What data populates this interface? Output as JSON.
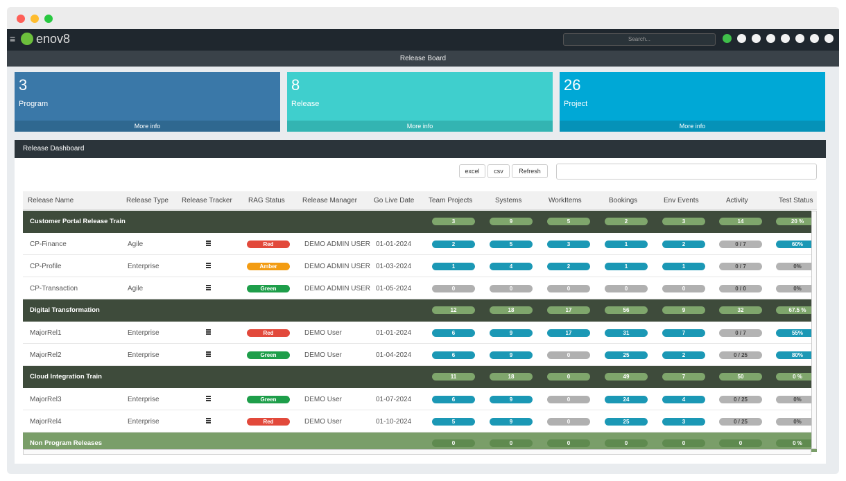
{
  "app": {
    "logo": "enov8",
    "search_placeholder": "Search...",
    "page_title": "Release Board"
  },
  "cards": [
    {
      "value": 3,
      "label": "Program",
      "more": "More info",
      "color": "#3a78a8",
      "foot": "#2f6890"
    },
    {
      "value": 8,
      "label": "Release",
      "more": "More info",
      "color": "#3fcfcd",
      "foot": "#33b4b2"
    },
    {
      "value": 26,
      "label": "Project",
      "more": "More info",
      "color": "#00a8d6",
      "foot": "#0592b8"
    }
  ],
  "panel": {
    "title": "Release Dashboard",
    "buttons": [
      "excel",
      "csv",
      "Refresh"
    ]
  },
  "table": {
    "columns": [
      "Release Name",
      "Release Type",
      "Release Tracker",
      "RAG Status",
      "Release Manager",
      "Go Live Date",
      "Team Projects",
      "Systems",
      "WorkItems",
      "Bookings",
      "Env Events",
      "Activity",
      "Test Status"
    ],
    "groups": [
      {
        "name": "Customer Portal Release Train",
        "color": "#3e4b3b",
        "totals": [
          3,
          9,
          5,
          2,
          3,
          14
        ],
        "test": "20 %",
        "rows": [
          {
            "name": "CP-Finance",
            "type": "Agile",
            "rag": {
              "label": "Red",
              "color": "#e2493b"
            },
            "manager": "DEMO ADMIN USER",
            "date": "01-01-2024",
            "counts": [
              2,
              5,
              3,
              1,
              2
            ],
            "activity": "0 / 7",
            "test": "60%"
          },
          {
            "name": "CP-Profile",
            "type": "Enterprise",
            "rag": {
              "label": "Amber",
              "color": "#f39c12"
            },
            "manager": "DEMO ADMIN USER",
            "date": "01-03-2024",
            "counts": [
              1,
              4,
              2,
              1,
              1
            ],
            "activity": "0 / 7",
            "test": "0%"
          },
          {
            "name": "CP-Transaction",
            "type": "Agile",
            "rag": {
              "label": "Green",
              "color": "#1e9e4a"
            },
            "manager": "DEMO ADMIN USER",
            "date": "01-05-2024",
            "counts": [
              0,
              0,
              0,
              0,
              0
            ],
            "activity": "0 / 0",
            "test": "0%"
          }
        ]
      },
      {
        "name": "Digital Transformation",
        "color": "#3e4b3b",
        "totals": [
          12,
          18,
          17,
          56,
          9,
          32
        ],
        "test": "67.5 %",
        "rows": [
          {
            "name": "MajorRel1",
            "type": "Enterprise",
            "rag": {
              "label": "Red",
              "color": "#e2493b"
            },
            "manager": "DEMO User",
            "date": "01-01-2024",
            "counts": [
              6,
              9,
              17,
              31,
              7
            ],
            "activity": "0 / 7",
            "test": "55%"
          },
          {
            "name": "MajorRel2",
            "type": "Enterprise",
            "rag": {
              "label": "Green",
              "color": "#1e9e4a"
            },
            "manager": "DEMO User",
            "date": "01-04-2024",
            "counts": [
              6,
              9,
              0,
              25,
              2
            ],
            "activity": "0 / 25",
            "test": "80%"
          }
        ]
      },
      {
        "name": "Cloud Integration Train",
        "color": "#3e4b3b",
        "totals": [
          11,
          18,
          0,
          49,
          7,
          50
        ],
        "test": "0 %",
        "rows": [
          {
            "name": "MajorRel3",
            "type": "Enterprise",
            "rag": {
              "label": "Green",
              "color": "#1e9e4a"
            },
            "manager": "DEMO User",
            "date": "01-07-2024",
            "counts": [
              6,
              9,
              0,
              24,
              4
            ],
            "activity": "0 / 25",
            "test": "0%"
          },
          {
            "name": "MajorRel4",
            "type": "Enterprise",
            "rag": {
              "label": "Red",
              "color": "#e2493b"
            },
            "manager": "DEMO User",
            "date": "01-10-2024",
            "counts": [
              5,
              9,
              0,
              25,
              3
            ],
            "activity": "0 / 25",
            "test": "0%"
          }
        ]
      },
      {
        "name": "Non Program Releases",
        "color": "#7a9e69",
        "totals": [
          0,
          0,
          0,
          0,
          0,
          0
        ],
        "test": "0 %",
        "rows": []
      }
    ]
  }
}
